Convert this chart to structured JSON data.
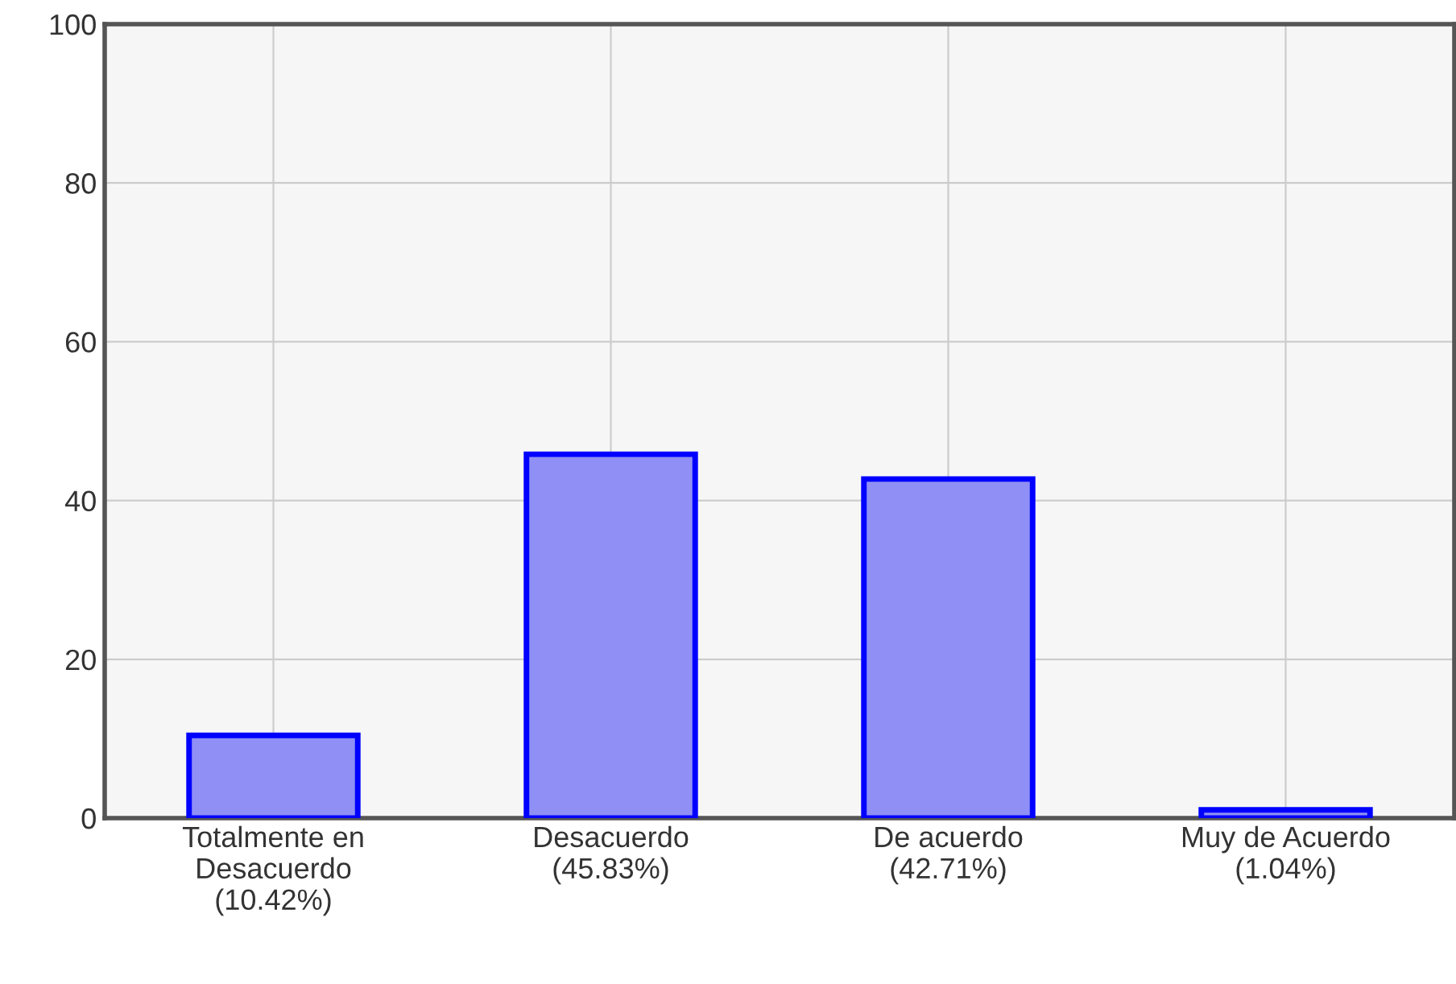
{
  "chart_data": {
    "type": "bar",
    "categories": [
      "Totalmente en\nDesacuerdo\n(10.42%)",
      "Desacuerdo\n(45.83%)",
      "De acuerdo\n(42.71%)",
      "Muy de Acuerdo\n(1.04%)"
    ],
    "values": [
      10.42,
      45.83,
      42.71,
      1.04
    ],
    "color": "#8f8ff5",
    "ylim": [
      0,
      100
    ],
    "yticks": [
      0,
      20,
      40,
      60,
      80,
      100
    ],
    "grid": true,
    "legend": false
  }
}
